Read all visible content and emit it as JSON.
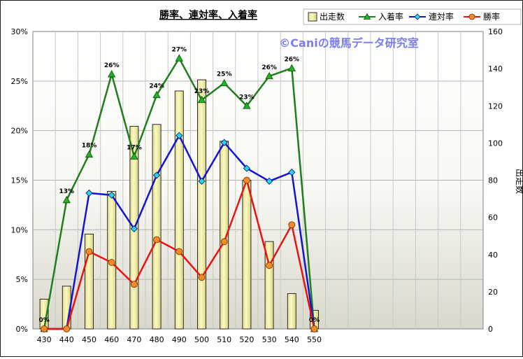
{
  "chart_data": {
    "type": "bar",
    "title": "勝率、連対率、入着率",
    "watermark": "©Caniの競馬データ研究室",
    "categories": [
      "430",
      "440",
      "450",
      "460",
      "470",
      "480",
      "490",
      "500",
      "510",
      "520",
      "530",
      "540",
      "550"
    ],
    "y2label": "出走数",
    "ylim": [
      0,
      30
    ],
    "y2lim": [
      0,
      160
    ],
    "yticks": [
      "0%",
      "5%",
      "10%",
      "15%",
      "20%",
      "25%",
      "30%"
    ],
    "y2ticks": [
      "0",
      "20",
      "40",
      "60",
      "80",
      "100",
      "120",
      "140",
      "160"
    ],
    "grid": true,
    "legend_position": "top-right",
    "bar_series": {
      "name": "出走数",
      "axis": "right",
      "color": "#f4f0a8",
      "values": [
        16,
        23,
        51,
        74,
        109,
        110,
        128,
        134,
        101,
        80,
        47,
        19,
        10
      ]
    },
    "line_series": [
      {
        "name": "入着率",
        "axis": "left",
        "color": "#1f7f1f",
        "marker": "triangle",
        "marker_color": "#22b322",
        "values": [
          0,
          13,
          17.6,
          25.7,
          17.4,
          23.6,
          27.3,
          23.1,
          24.8,
          22.5,
          25.5,
          26.3,
          0
        ]
      },
      {
        "name": "連対率",
        "axis": "left",
        "color": "#1414d2",
        "marker": "diamond",
        "marker_color": "#22d8e6",
        "values": [
          0,
          0,
          13.7,
          13.5,
          10.1,
          15.5,
          19.5,
          14.9,
          18.8,
          16.2,
          14.9,
          15.8,
          0
        ]
      },
      {
        "name": "勝率",
        "axis": "left",
        "color": "#e61414",
        "marker": "circle",
        "marker_color": "#f08c28",
        "values": [
          0,
          0,
          7.8,
          6.7,
          4.5,
          9.0,
          7.8,
          5.2,
          8.8,
          15.0,
          6.4,
          10.5,
          0
        ]
      }
    ],
    "data_labels": {
      "series": "入着率",
      "labels": [
        "0%",
        "13%",
        "18%",
        "26%",
        "17%",
        "24%",
        "27%",
        "23%",
        "25%",
        "23%",
        "26%",
        "26%",
        "0%"
      ]
    }
  }
}
